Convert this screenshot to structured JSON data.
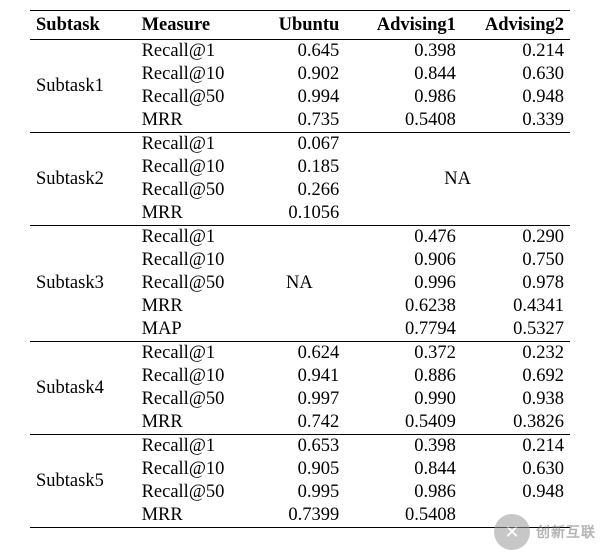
{
  "header": {
    "subtask": "Subtask",
    "measure": "Measure",
    "ubuntu": "Ubuntu",
    "advising1": "Advising1",
    "advising2": "Advising2"
  },
  "na_label": "NA",
  "groups": [
    {
      "name": "Subtask1",
      "rows": [
        {
          "measure": "Recall@1",
          "ubuntu": "0.645",
          "adv1": "0.398",
          "adv2": "0.214"
        },
        {
          "measure": "Recall@10",
          "ubuntu": "0.902",
          "adv1": "0.844",
          "adv2": "0.630"
        },
        {
          "measure": "Recall@50",
          "ubuntu": "0.994",
          "adv1": "0.986",
          "adv2": "0.948"
        },
        {
          "measure": "MRR",
          "ubuntu": "0.735",
          "adv1": "0.5408",
          "adv2": "0.339"
        }
      ]
    },
    {
      "name": "Subtask2",
      "rows": [
        {
          "measure": "Recall@1",
          "ubuntu": "0.067"
        },
        {
          "measure": "Recall@10",
          "ubuntu": "0.185"
        },
        {
          "measure": "Recall@50",
          "ubuntu": "0.266"
        },
        {
          "measure": "MRR",
          "ubuntu": "0.1056"
        }
      ]
    },
    {
      "name": "Subtask3",
      "rows": [
        {
          "measure": "Recall@1",
          "adv1": "0.476",
          "adv2": "0.290"
        },
        {
          "measure": "Recall@10",
          "adv1": "0.906",
          "adv2": "0.750"
        },
        {
          "measure": "Recall@50",
          "adv1": "0.996",
          "adv2": "0.978"
        },
        {
          "measure": "MRR",
          "adv1": "0.6238",
          "adv2": "0.4341"
        },
        {
          "measure": "MAP",
          "adv1": "0.7794",
          "adv2": "0.5327"
        }
      ]
    },
    {
      "name": "Subtask4",
      "rows": [
        {
          "measure": "Recall@1",
          "ubuntu": "0.624",
          "adv1": "0.372",
          "adv2": "0.232"
        },
        {
          "measure": "Recall@10",
          "ubuntu": "0.941",
          "adv1": "0.886",
          "adv2": "0.692"
        },
        {
          "measure": "Recall@50",
          "ubuntu": "0.997",
          "adv1": "0.990",
          "adv2": "0.938"
        },
        {
          "measure": "MRR",
          "ubuntu": "0.742",
          "adv1": "0.5409",
          "adv2": "0.3826"
        }
      ]
    },
    {
      "name": "Subtask5",
      "rows": [
        {
          "measure": "Recall@1",
          "ubuntu": "0.653",
          "adv1": "0.398",
          "adv2": "0.214"
        },
        {
          "measure": "Recall@10",
          "ubuntu": "0.905",
          "adv1": "0.844",
          "adv2": "0.630"
        },
        {
          "measure": "Recall@50",
          "ubuntu": "0.995",
          "adv1": "0.986",
          "adv2": "0.948"
        },
        {
          "measure": "MRR",
          "ubuntu": "0.7399",
          "adv1": "0.5408",
          "adv2": ""
        }
      ]
    }
  ],
  "watermark": {
    "logo_glyph": "✕",
    "text": "创新互联"
  }
}
